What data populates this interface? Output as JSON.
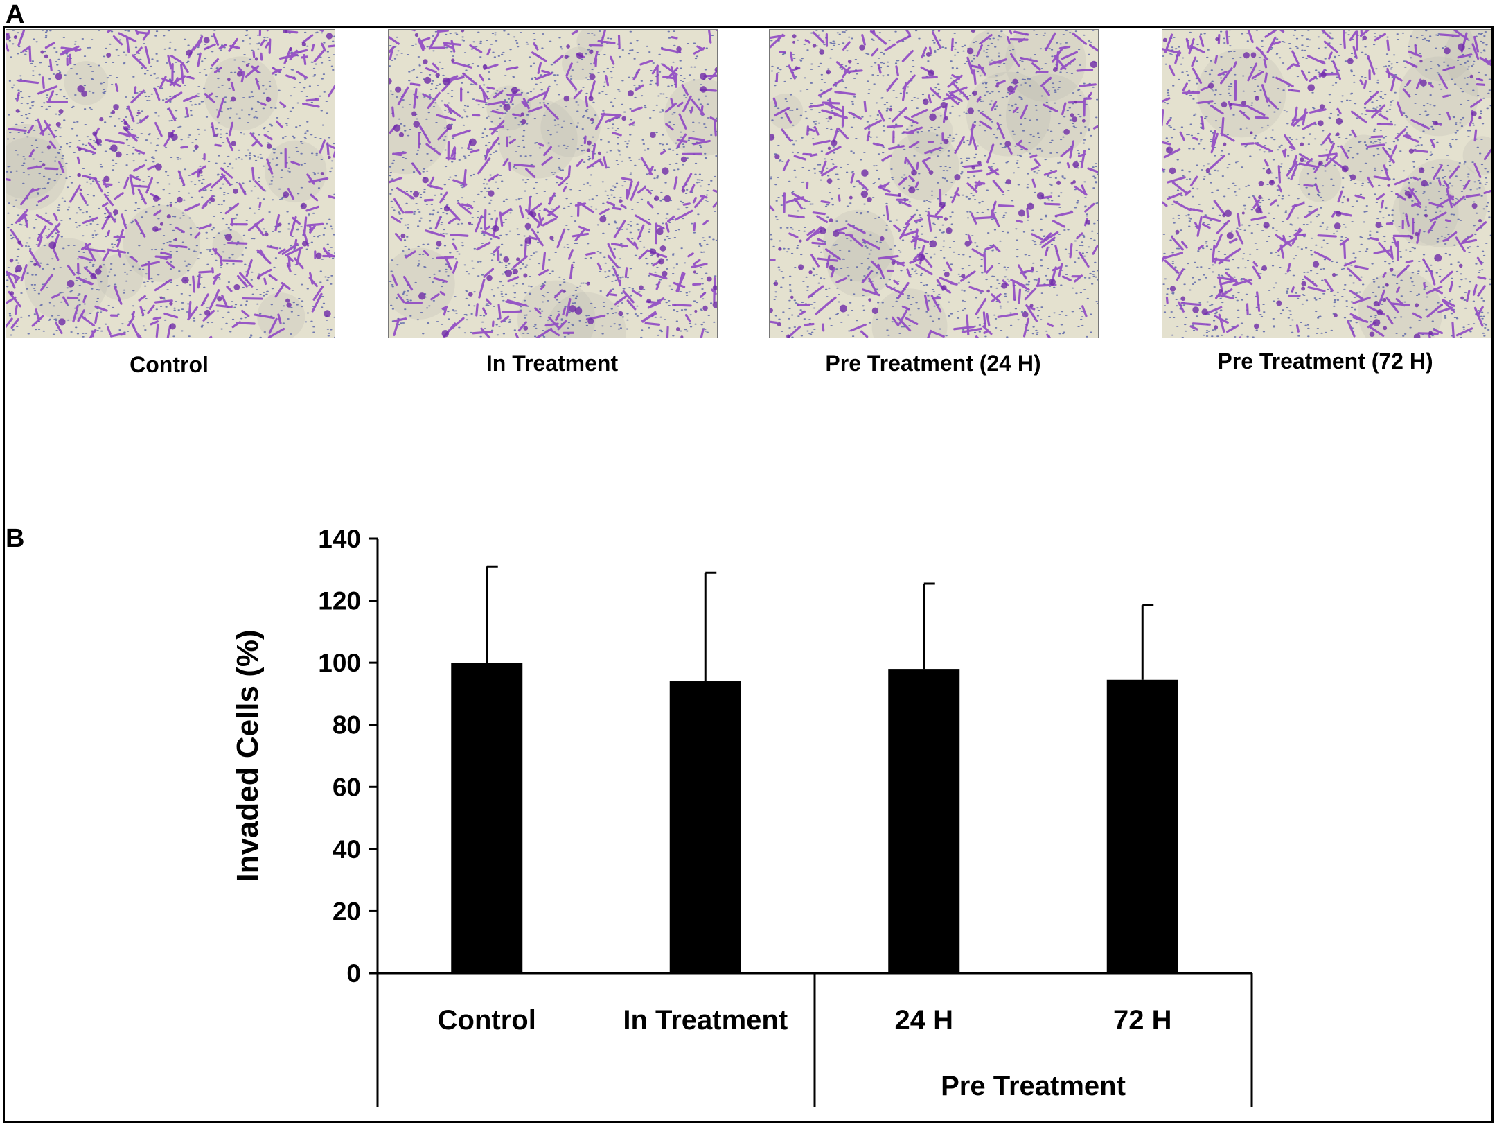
{
  "panels": {
    "a_letter": "A",
    "b_letter": "B"
  },
  "micrographs": [
    {
      "caption": "Control"
    },
    {
      "caption": "In Treatment"
    },
    {
      "caption": "Pre Treatment (24 H)"
    },
    {
      "caption": "Pre Treatment (72 H)"
    }
  ],
  "colors": {
    "background_stain": "#e4e1cf",
    "cell_stain": "#8a3fc4",
    "pore_dots": "#5560a8",
    "bar_fill": "#000000"
  },
  "chart_data": {
    "type": "bar",
    "categories": [
      "Control",
      "In Treatment",
      "24 H",
      "72 H"
    ],
    "group_label": "Pre Treatment",
    "group_members": [
      "24 H",
      "72 H"
    ],
    "values": [
      100,
      94,
      98,
      94.5
    ],
    "error_upper": [
      31,
      35,
      27.5,
      24
    ],
    "ylabel": "Invaded Cells (%)",
    "xlabel": "",
    "ylim": [
      0,
      140
    ],
    "yticks": [
      0,
      20,
      40,
      60,
      80,
      100,
      120,
      140
    ],
    "grid": false,
    "legend": "none"
  }
}
